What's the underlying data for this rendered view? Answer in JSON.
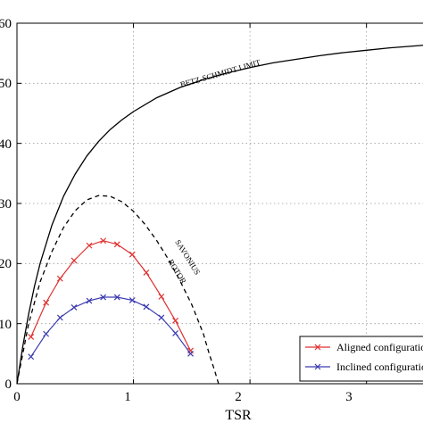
{
  "chart_data": {
    "type": "line",
    "xlabel": "TSR",
    "ylabel": "",
    "xlim": [
      0,
      3.6
    ],
    "ylim": [
      0,
      60
    ],
    "x_ticks": [
      "0",
      "1",
      "2",
      "3"
    ],
    "y_ticks": [
      "0",
      "10",
      "20",
      "30",
      "40",
      "50",
      "60"
    ],
    "grid": "dotted",
    "legend_position": "bottom-right",
    "annotations": {
      "betz": "BETZ-SCHMIDT LIMIT",
      "savonius_line1": "SAVONIUS",
      "savonius_line2": "ROTOR"
    },
    "series": [
      {
        "name": "",
        "style": "solid",
        "color": "#000000",
        "x": [
          0,
          0.05,
          0.1,
          0.15,
          0.2,
          0.3,
          0.4,
          0.5,
          0.6,
          0.7,
          0.8,
          0.9,
          1.0,
          1.2,
          1.4,
          1.6,
          1.8,
          2.0,
          2.2,
          2.4,
          2.6,
          2.8,
          3.0,
          3.2,
          3.4,
          3.6
        ],
        "y": [
          0,
          6.2,
          11.6,
          16.2,
          20.1,
          26.4,
          31.2,
          34.9,
          37.9,
          40.3,
          42.3,
          43.9,
          45.3,
          47.6,
          49.3,
          50.6,
          51.7,
          52.6,
          53.4,
          54.0,
          54.6,
          55.1,
          55.5,
          55.9,
          56.2,
          56.5
        ]
      },
      {
        "name": "",
        "style": "dashed",
        "color": "#000000",
        "x": [
          0,
          0.1,
          0.2,
          0.3,
          0.4,
          0.5,
          0.6,
          0.7,
          0.8,
          0.9,
          1.0,
          1.1,
          1.2,
          1.3,
          1.4,
          1.5,
          1.6,
          1.65,
          1.7,
          1.73
        ],
        "y": [
          0,
          10,
          17,
          22,
          26,
          28.8,
          30.6,
          31.3,
          31.2,
          30.3,
          28.7,
          26.5,
          23.8,
          20.7,
          17.1,
          13.2,
          8.3,
          5.0,
          2.0,
          0
        ]
      },
      {
        "name": "Aligned configuration",
        "style": "markers",
        "marker": "x",
        "color": "#e03030",
        "x": [
          0.12,
          0.25,
          0.37,
          0.49,
          0.62,
          0.74,
          0.86,
          0.99,
          1.11,
          1.24,
          1.36,
          1.49
        ],
        "y": [
          7.8,
          13.5,
          17.5,
          20.5,
          23.0,
          23.8,
          23.2,
          21.5,
          18.5,
          14.5,
          10.5,
          5.5
        ]
      },
      {
        "name": "Inclined configuration",
        "style": "markers",
        "marker": "x",
        "color": "#3b3bb0",
        "x": [
          0.12,
          0.25,
          0.37,
          0.49,
          0.62,
          0.74,
          0.86,
          0.99,
          1.11,
          1.24,
          1.36,
          1.49
        ],
        "y": [
          4.5,
          8.3,
          11.0,
          12.7,
          13.8,
          14.4,
          14.4,
          13.9,
          12.8,
          11.0,
          8.4,
          5.0
        ]
      }
    ]
  }
}
